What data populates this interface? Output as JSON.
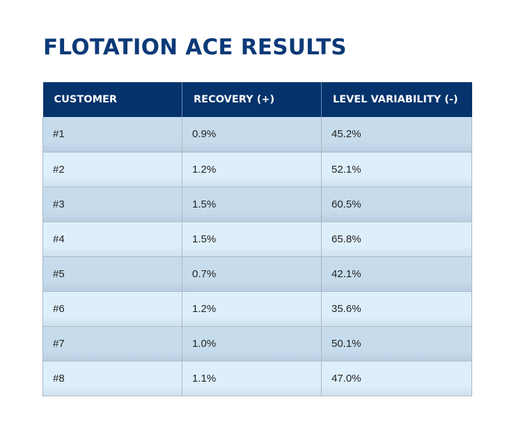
{
  "title": "FLOTATION ACE RESULTS",
  "table": {
    "headers": [
      "CUSTOMER",
      "RECOVERY (+)",
      "LEVEL VARIABILITY (-)"
    ],
    "rows": [
      [
        "#1",
        "0.9%",
        "45.2%"
      ],
      [
        "#2",
        "1.2%",
        "52.1%"
      ],
      [
        "#3",
        "1.5%",
        "60.5%"
      ],
      [
        "#4",
        "1.5%",
        "65.8%"
      ],
      [
        "#5",
        "0.7%",
        "42.1%"
      ],
      [
        "#6",
        "1.2%",
        "35.6%"
      ],
      [
        "#7",
        "1.0%",
        "50.1%"
      ],
      [
        "#8",
        "1.1%",
        "47.0%"
      ]
    ]
  },
  "colors": {
    "title": "#0c3a78",
    "header_bg": "#06336c",
    "row_odd": "#c6dcec",
    "row_even": "#deeffc"
  }
}
